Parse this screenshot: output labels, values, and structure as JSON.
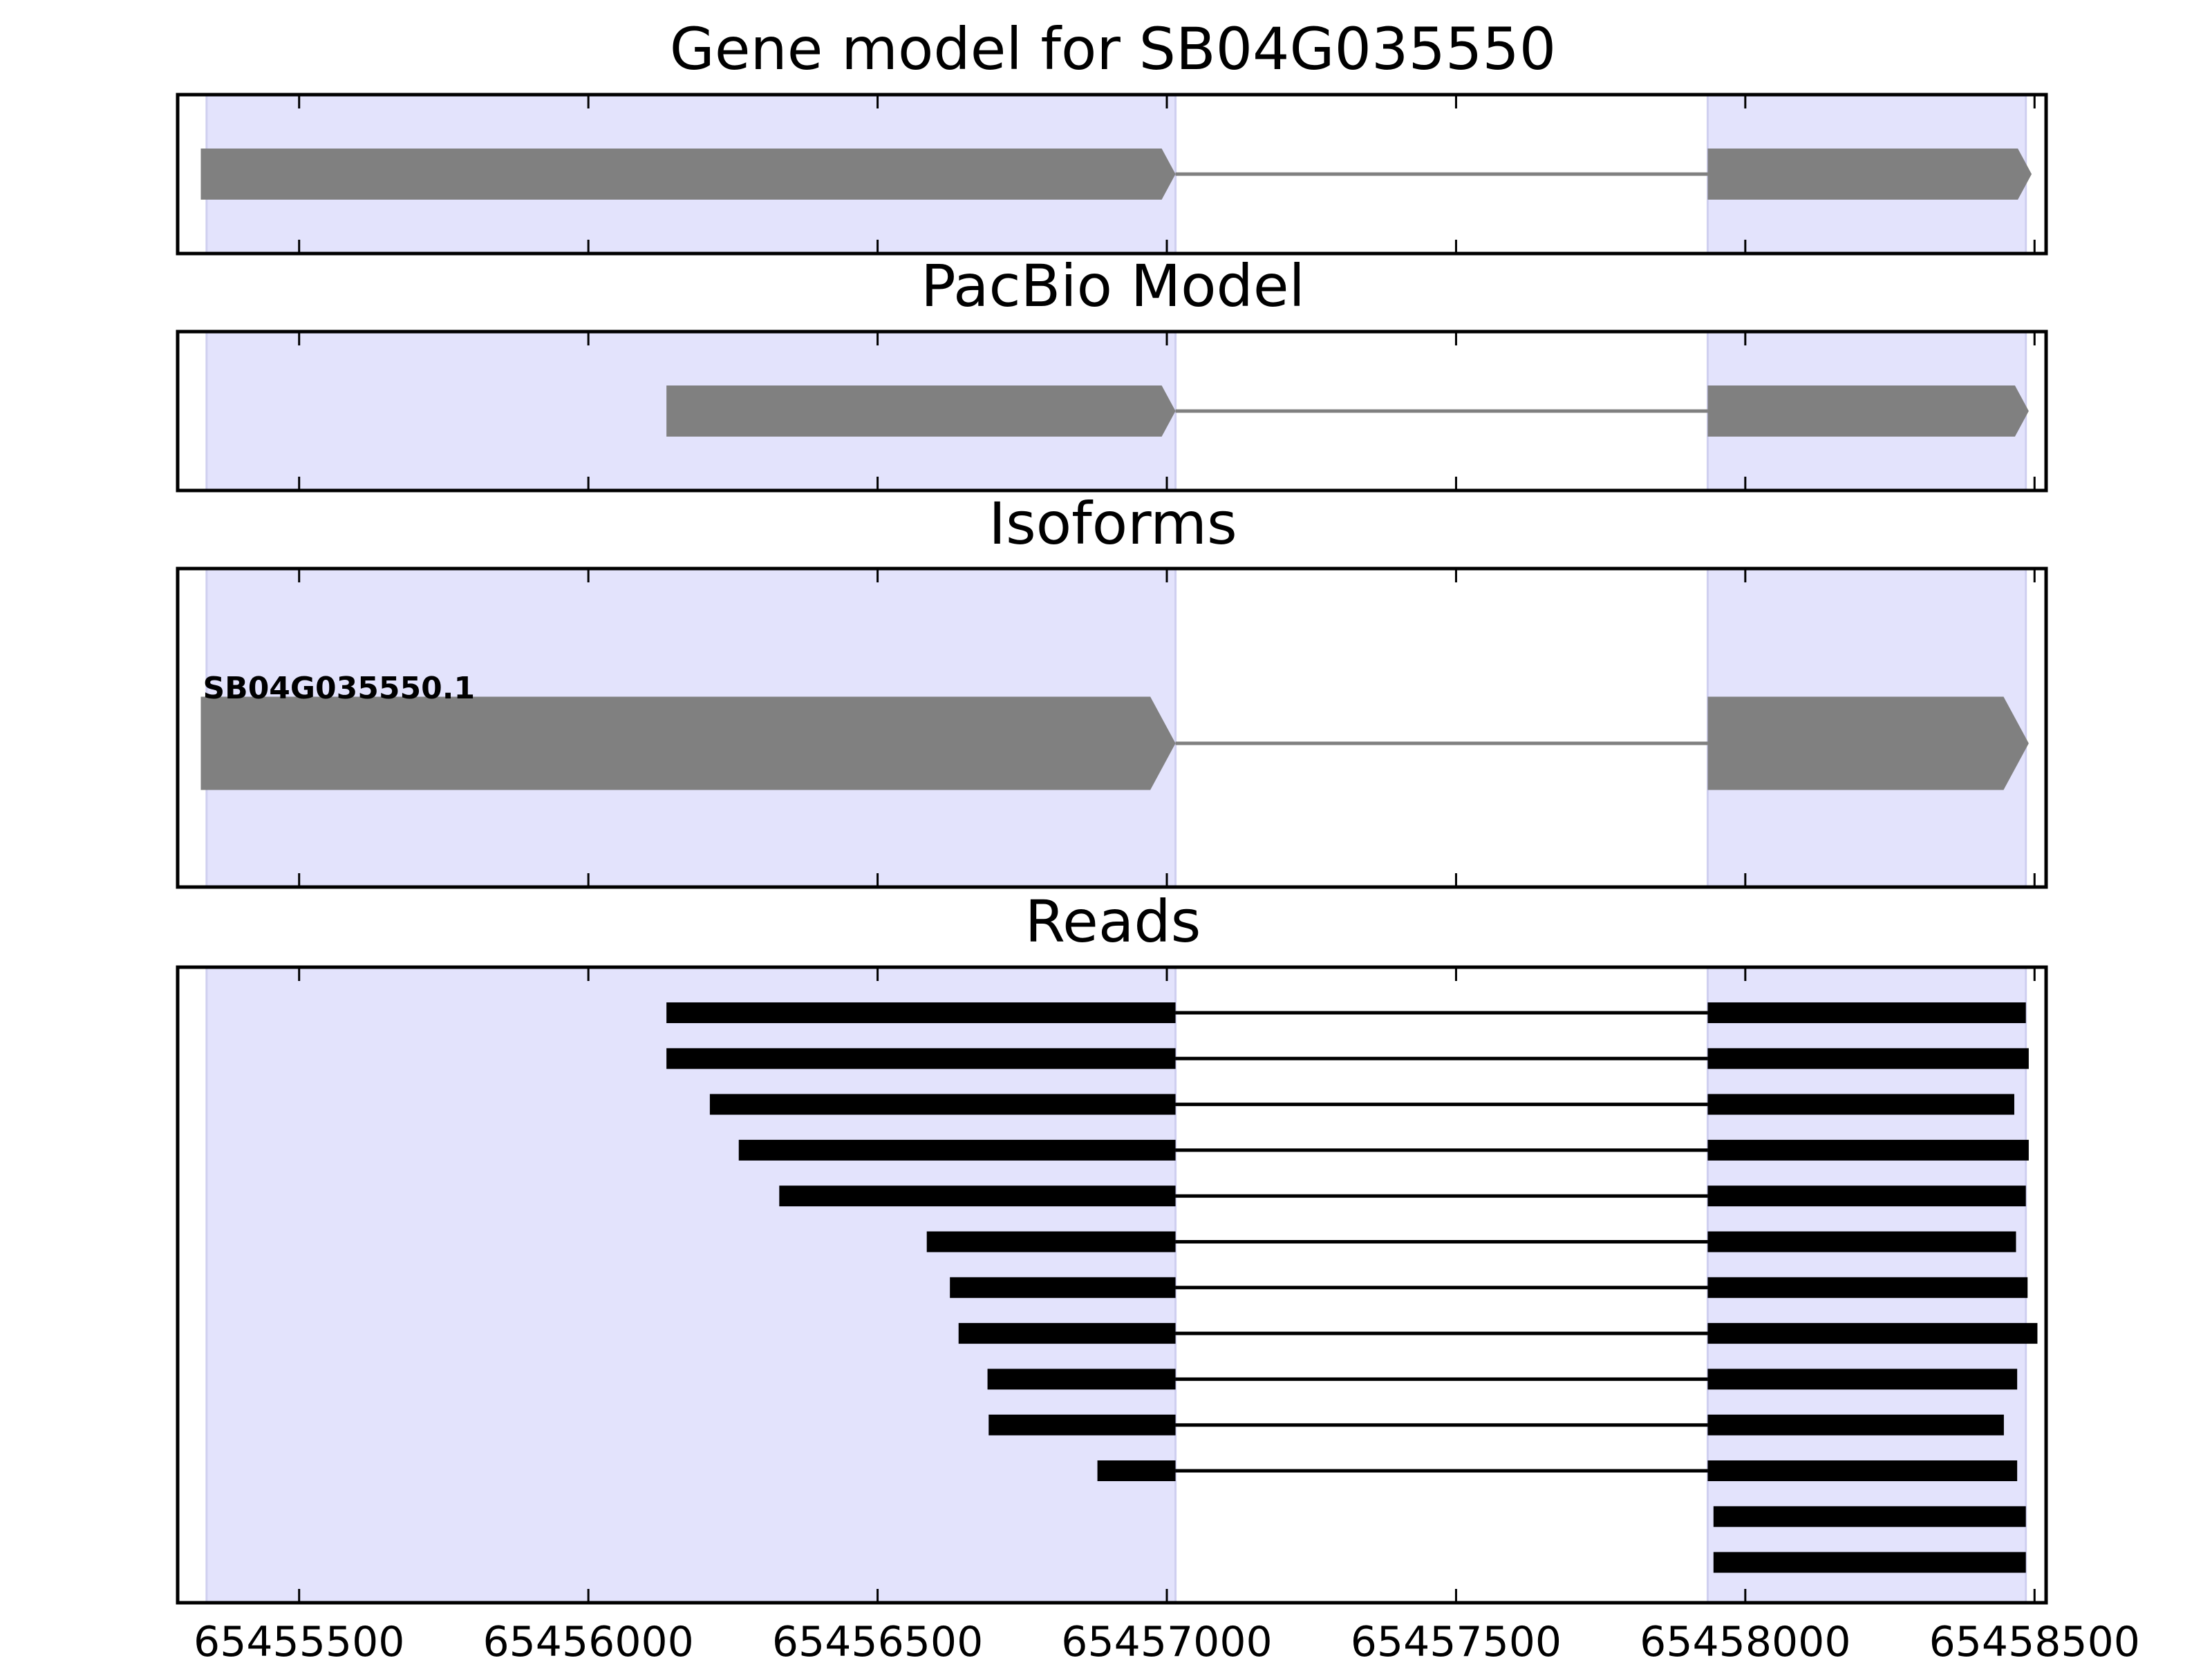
{
  "chart_data": {
    "type": "gene-model",
    "x_ticks": [
      65455500,
      65456000,
      65456500,
      65457000,
      65457500,
      65458000,
      65458500
    ],
    "exon_highlights": [
      [
        65455340,
        65457015
      ],
      [
        65457935,
        65458485
      ]
    ],
    "panels": [
      {
        "title": "Gene model for SB04G035550",
        "tracks": [
          {
            "label": "",
            "exons": [
              [
                65455330,
                65457015
              ],
              [
                65457935,
                65458495
              ]
            ]
          }
        ]
      },
      {
        "title": "PacBio Model",
        "tracks": [
          {
            "label": "",
            "exons": [
              [
                65456135,
                65457015
              ],
              [
                65457935,
                65458490
              ]
            ]
          }
        ]
      },
      {
        "title": "Isoforms",
        "tracks": [
          {
            "label": "SB04G035550.1",
            "exons": [
              [
                65455330,
                65457015
              ],
              [
                65457935,
                65458490
              ]
            ]
          }
        ]
      },
      {
        "title": "Reads",
        "reads": [
          [
            [
              65456135,
              65457015
            ],
            [
              65457935,
              65458485
            ]
          ],
          [
            [
              65456135,
              65457015
            ],
            [
              65457935,
              65458490
            ]
          ],
          [
            [
              65456210,
              65457015
            ],
            [
              65457935,
              65458465
            ]
          ],
          [
            [
              65456260,
              65457015
            ],
            [
              65457935,
              65458490
            ]
          ],
          [
            [
              65456330,
              65457015
            ],
            [
              65457935,
              65458485
            ]
          ],
          [
            [
              65456585,
              65457015
            ],
            [
              65457935,
              65458468
            ]
          ],
          [
            [
              65456625,
              65457015
            ],
            [
              65457935,
              65458488
            ]
          ],
          [
            [
              65456640,
              65457015
            ],
            [
              65457935,
              65458505
            ]
          ],
          [
            [
              65456690,
              65457015
            ],
            [
              65457935,
              65458470
            ]
          ],
          [
            [
              65456692,
              65457015
            ],
            [
              65457935,
              65458447
            ]
          ],
          [
            [
              65456880,
              65457015
            ],
            [
              65457935,
              65458470
            ]
          ],
          [
            [
              65457945,
              65458485
            ]
          ],
          [
            [
              65457945,
              65458485
            ]
          ]
        ]
      }
    ]
  }
}
